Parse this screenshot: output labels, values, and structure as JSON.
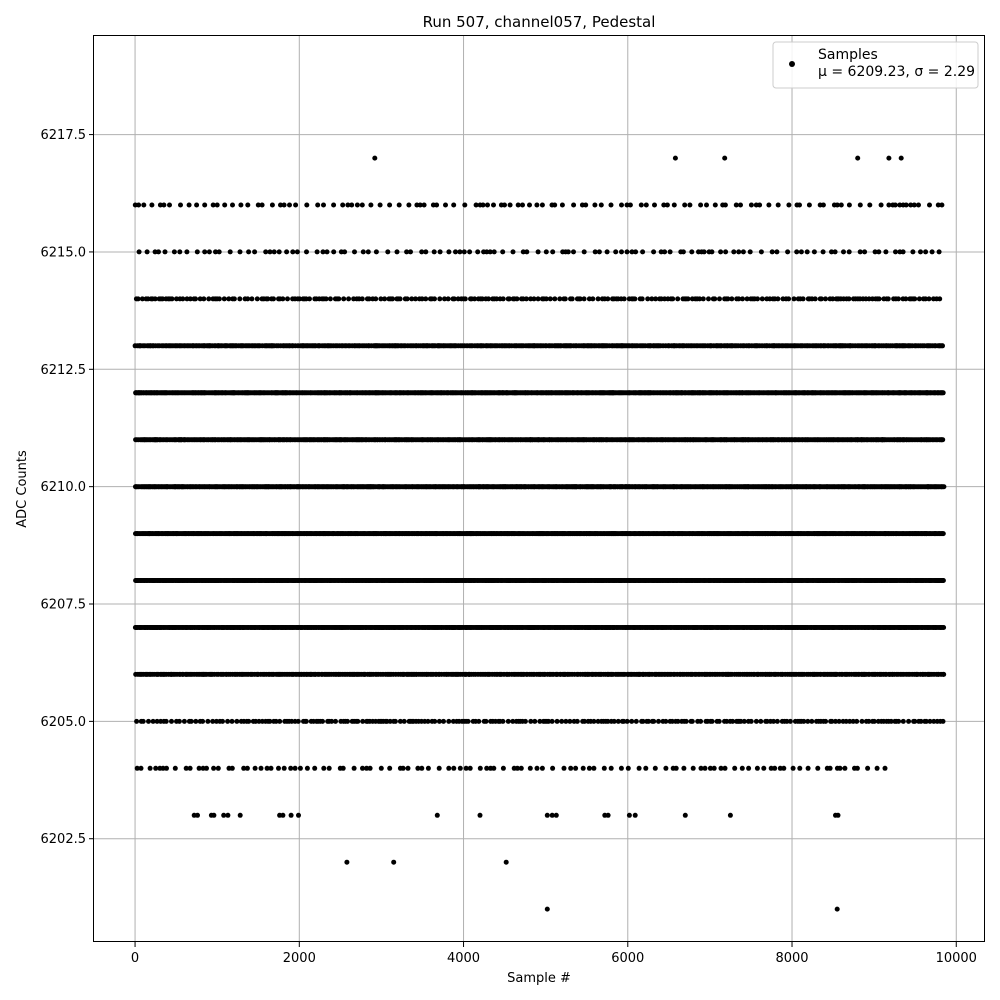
{
  "chart_data": {
    "type": "scatter",
    "title": "Run 507, channel057, Pedestal",
    "xlabel": "Sample #",
    "ylabel": "ADC Counts",
    "xlim": [
      -500,
      10350
    ],
    "ylim": [
      6200.3,
      6219.6
    ],
    "xticks": [
      0,
      2000,
      4000,
      6000,
      8000,
      10000
    ],
    "yticks": [
      6202.5,
      6205.0,
      6207.5,
      6210.0,
      6212.5,
      6215.0,
      6217.5
    ],
    "xtick_labels": [
      "0",
      "2000",
      "4000",
      "6000",
      "8000",
      "10000"
    ],
    "ytick_labels": [
      "6202.5",
      "6205.0",
      "6207.5",
      "6210.0",
      "6212.5",
      "6215.0",
      "6217.5"
    ],
    "grid": true,
    "legend_position": "top-right",
    "marker_color": "#000000",
    "series": [
      {
        "name": "Samples",
        "stats_label": "μ = 6209.23, σ = 2.29",
        "x_range": [
          0,
          9850
        ],
        "sample_count": 9850,
        "mean": 6209.23,
        "std": 2.29,
        "levels": [
          {
            "y": 6209,
            "x": [
              0,
              9850
            ],
            "density": "continuous"
          },
          {
            "y": 6210,
            "x": [
              0,
              9850
            ],
            "density": "continuous"
          },
          {
            "y": 6208,
            "x": [
              0,
              9850
            ],
            "density": "continuous"
          },
          {
            "y": 6211,
            "x": [
              0,
              9850
            ],
            "density": "dense"
          },
          {
            "y": 6207,
            "x": [
              0,
              9850
            ],
            "density": "dense"
          },
          {
            "y": 6212,
            "x": [
              0,
              9850
            ],
            "density": "dense"
          },
          {
            "y": 6206,
            "x": [
              0,
              9850
            ],
            "density": "medium"
          },
          {
            "y": 6213,
            "x": [
              0,
              9850
            ],
            "density": "medium"
          },
          {
            "y": 6205,
            "x": [
              0,
              9850
            ],
            "density": "sparse"
          },
          {
            "y": 6214,
            "x": [
              0,
              9850
            ],
            "density": "sparse"
          },
          {
            "y": 6204,
            "x": [
              0,
              9200
            ],
            "density": "very-sparse"
          },
          {
            "y": 6215,
            "x": [
              0,
              9850
            ],
            "density": "very-sparse"
          },
          {
            "y": 6216,
            "x": [
              0,
              9850
            ],
            "density": "very-sparse"
          }
        ],
        "outliers": [
          {
            "x": 720,
            "y": 6203
          },
          {
            "x": 760,
            "y": 6203
          },
          {
            "x": 930,
            "y": 6203
          },
          {
            "x": 960,
            "y": 6203
          },
          {
            "x": 1080,
            "y": 6203
          },
          {
            "x": 1130,
            "y": 6203
          },
          {
            "x": 1280,
            "y": 6203
          },
          {
            "x": 1760,
            "y": 6203
          },
          {
            "x": 1800,
            "y": 6203
          },
          {
            "x": 1900,
            "y": 6203
          },
          {
            "x": 1990,
            "y": 6203
          },
          {
            "x": 3680,
            "y": 6203
          },
          {
            "x": 4200,
            "y": 6203
          },
          {
            "x": 5020,
            "y": 6203
          },
          {
            "x": 5080,
            "y": 6203
          },
          {
            "x": 5130,
            "y": 6203
          },
          {
            "x": 5720,
            "y": 6203
          },
          {
            "x": 5760,
            "y": 6203
          },
          {
            "x": 6020,
            "y": 6203
          },
          {
            "x": 6090,
            "y": 6203
          },
          {
            "x": 6700,
            "y": 6203
          },
          {
            "x": 7250,
            "y": 6203
          },
          {
            "x": 8530,
            "y": 6203
          },
          {
            "x": 8560,
            "y": 6203
          },
          {
            "x": 2580,
            "y": 6202
          },
          {
            "x": 3150,
            "y": 6202
          },
          {
            "x": 4520,
            "y": 6202
          },
          {
            "x": 5020,
            "y": 6201
          },
          {
            "x": 8550,
            "y": 6201
          },
          {
            "x": 2920,
            "y": 6217
          },
          {
            "x": 6580,
            "y": 6217
          },
          {
            "x": 7180,
            "y": 6217
          },
          {
            "x": 8800,
            "y": 6217
          },
          {
            "x": 9180,
            "y": 6217
          },
          {
            "x": 9330,
            "y": 6217
          }
        ]
      }
    ]
  }
}
